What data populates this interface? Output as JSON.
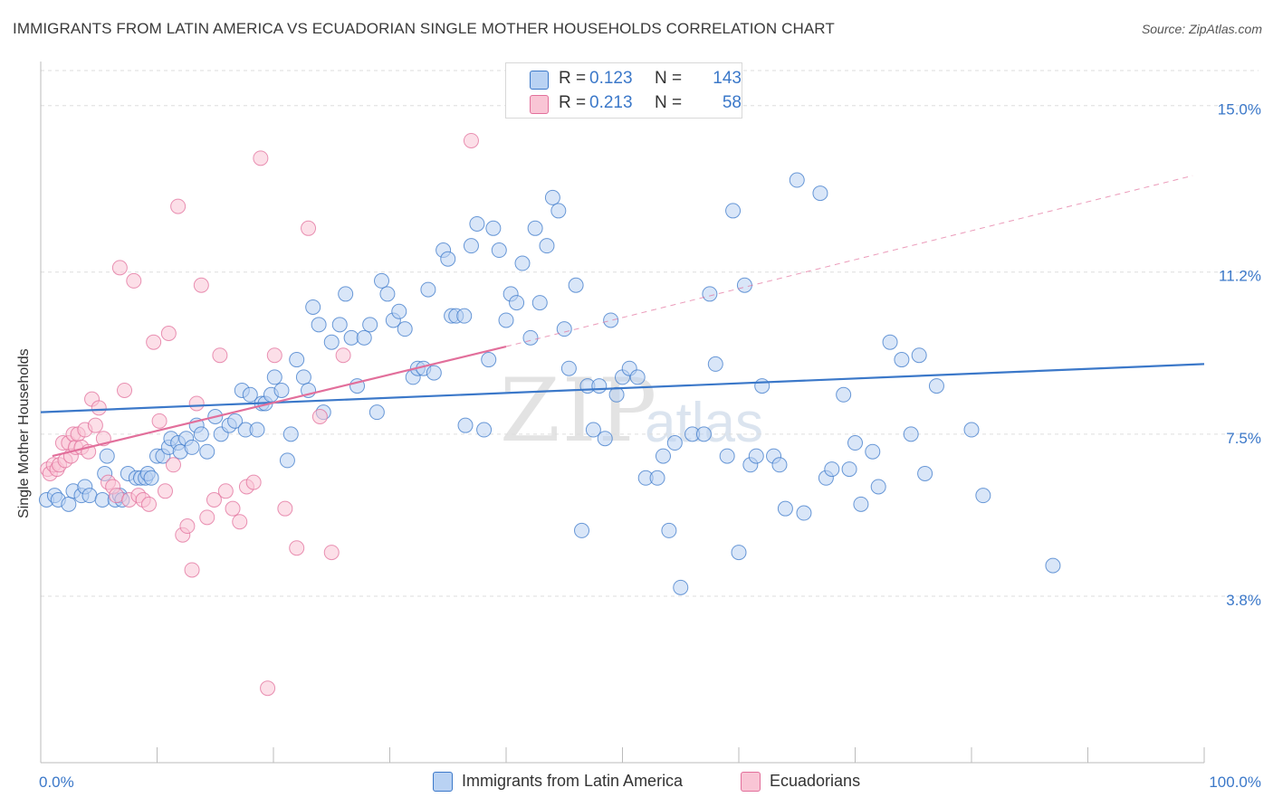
{
  "title": "IMMIGRANTS FROM LATIN AMERICA VS ECUADORIAN SINGLE MOTHER HOUSEHOLDS CORRELATION CHART",
  "source": "Source: ZipAtlas.com",
  "watermark": {
    "zip": "ZIP",
    "atlas": "atlas"
  },
  "colors": {
    "blue": "#3b78c9",
    "blue_fill": "#b9d2f3",
    "pink": "#e26f9b",
    "pink_fill": "#f9c5d5",
    "grid": "#dddddd"
  },
  "legend": {
    "rows": [
      {
        "r_label": "R =",
        "r_value": "0.123",
        "n_label": "N =",
        "n_value": "143"
      },
      {
        "r_label": "R =",
        "r_value": "0.213",
        "n_label": "N =",
        "n_value": "58"
      }
    ],
    "series_names": [
      "Immigrants from Latin America",
      "Ecuadorians"
    ]
  },
  "chart_data": {
    "type": "scatter",
    "title": "IMMIGRANTS FROM LATIN AMERICA VS ECUADORIAN SINGLE MOTHER HOUSEHOLDS CORRELATION CHART",
    "xlabel": "",
    "ylabel": "Single Mother Households",
    "xlim": [
      0,
      100
    ],
    "ylim": [
      0,
      15.8
    ],
    "x_tick_labels": [
      "0.0%",
      "100.0%"
    ],
    "y_ticks": [
      {
        "value": 3.8,
        "label": "3.8%"
      },
      {
        "value": 7.5,
        "label": "7.5%"
      },
      {
        "value": 11.2,
        "label": "11.2%"
      },
      {
        "value": 15.0,
        "label": "15.0%"
      }
    ],
    "series": [
      {
        "name": "Immigrants from Latin America",
        "color": "#3b78c9",
        "r": 0.123,
        "n": 143,
        "trend": {
          "x": [
            0,
            100
          ],
          "y": [
            8.0,
            9.1
          ],
          "style": "solid"
        },
        "points": [
          [
            0.5,
            6.0
          ],
          [
            1.2,
            6.1
          ],
          [
            1.5,
            6.0
          ],
          [
            2.4,
            5.9
          ],
          [
            2.8,
            6.2
          ],
          [
            3.5,
            6.1
          ],
          [
            3.8,
            6.3
          ],
          [
            4.2,
            6.1
          ],
          [
            5.3,
            6.0
          ],
          [
            5.7,
            7.0
          ],
          [
            5.5,
            6.6
          ],
          [
            6.4,
            6.0
          ],
          [
            6.8,
            6.1
          ],
          [
            7.0,
            6.0
          ],
          [
            7.5,
            6.6
          ],
          [
            8.2,
            6.5
          ],
          [
            8.6,
            6.5
          ],
          [
            9.0,
            6.5
          ],
          [
            9.2,
            6.6
          ],
          [
            9.5,
            6.5
          ],
          [
            10.0,
            7.0
          ],
          [
            10.5,
            7.0
          ],
          [
            11.0,
            7.2
          ],
          [
            11.2,
            7.4
          ],
          [
            11.8,
            7.3
          ],
          [
            12.0,
            7.1
          ],
          [
            12.5,
            7.4
          ],
          [
            13.0,
            7.2
          ],
          [
            13.4,
            7.7
          ],
          [
            13.8,
            7.5
          ],
          [
            14.3,
            7.1
          ],
          [
            15.0,
            7.9
          ],
          [
            15.5,
            7.5
          ],
          [
            16.2,
            7.7
          ],
          [
            16.7,
            7.8
          ],
          [
            17.3,
            8.5
          ],
          [
            17.6,
            7.6
          ],
          [
            18.0,
            8.4
          ],
          [
            18.6,
            7.6
          ],
          [
            19.0,
            8.2
          ],
          [
            19.3,
            8.2
          ],
          [
            19.8,
            8.4
          ],
          [
            20.1,
            8.8
          ],
          [
            20.7,
            8.5
          ],
          [
            21.2,
            6.9
          ],
          [
            21.5,
            7.5
          ],
          [
            22.0,
            9.2
          ],
          [
            22.6,
            8.8
          ],
          [
            23.0,
            8.5
          ],
          [
            23.4,
            10.4
          ],
          [
            23.9,
            10.0
          ],
          [
            24.3,
            8.0
          ],
          [
            25.0,
            9.6
          ],
          [
            25.7,
            10.0
          ],
          [
            26.2,
            10.7
          ],
          [
            26.7,
            9.7
          ],
          [
            27.2,
            8.6
          ],
          [
            27.8,
            9.7
          ],
          [
            28.3,
            10.0
          ],
          [
            28.9,
            8.0
          ],
          [
            29.3,
            11.0
          ],
          [
            29.8,
            10.7
          ],
          [
            30.3,
            10.1
          ],
          [
            30.8,
            10.3
          ],
          [
            31.3,
            9.9
          ],
          [
            32.0,
            8.8
          ],
          [
            32.4,
            9.0
          ],
          [
            32.9,
            9.0
          ],
          [
            33.3,
            10.8
          ],
          [
            33.8,
            8.9
          ],
          [
            34.6,
            11.7
          ],
          [
            35.0,
            11.5
          ],
          [
            35.3,
            10.2
          ],
          [
            35.7,
            10.2
          ],
          [
            36.4,
            10.2
          ],
          [
            36.5,
            7.7
          ],
          [
            37.0,
            11.8
          ],
          [
            37.5,
            12.3
          ],
          [
            38.1,
            7.6
          ],
          [
            38.5,
            9.2
          ],
          [
            38.9,
            12.2
          ],
          [
            39.4,
            11.7
          ],
          [
            40.0,
            10.1
          ],
          [
            40.4,
            10.7
          ],
          [
            40.9,
            10.5
          ],
          [
            41.4,
            11.4
          ],
          [
            42.1,
            9.7
          ],
          [
            42.5,
            12.2
          ],
          [
            42.9,
            10.5
          ],
          [
            43.5,
            11.8
          ],
          [
            44.0,
            12.9
          ],
          [
            44.5,
            12.6
          ],
          [
            45.0,
            9.9
          ],
          [
            45.4,
            9.0
          ],
          [
            46.0,
            10.9
          ],
          [
            46.5,
            5.3
          ],
          [
            47.0,
            8.6
          ],
          [
            47.5,
            7.6
          ],
          [
            48.0,
            8.6
          ],
          [
            48.5,
            7.4
          ],
          [
            49.0,
            10.1
          ],
          [
            49.5,
            8.4
          ],
          [
            50.0,
            8.8
          ],
          [
            50.6,
            9.0
          ],
          [
            51.3,
            8.8
          ],
          [
            52.0,
            6.5
          ],
          [
            53.0,
            6.5
          ],
          [
            53.5,
            7.0
          ],
          [
            54.0,
            5.3
          ],
          [
            54.5,
            7.3
          ],
          [
            55.0,
            4.0
          ],
          [
            56.0,
            7.5
          ],
          [
            57.0,
            7.5
          ],
          [
            57.5,
            10.7
          ],
          [
            58.0,
            9.1
          ],
          [
            59.0,
            7.0
          ],
          [
            59.5,
            12.6
          ],
          [
            60.0,
            4.8
          ],
          [
            60.5,
            10.9
          ],
          [
            61.0,
            6.8
          ],
          [
            61.5,
            7.0
          ],
          [
            62.0,
            8.6
          ],
          [
            63.0,
            7.0
          ],
          [
            63.5,
            6.8
          ],
          [
            64.0,
            5.8
          ],
          [
            65.0,
            13.3
          ],
          [
            65.6,
            5.7
          ],
          [
            67.0,
            13.0
          ],
          [
            67.5,
            6.5
          ],
          [
            68.0,
            6.7
          ],
          [
            69.0,
            8.4
          ],
          [
            69.5,
            6.7
          ],
          [
            70.0,
            7.3
          ],
          [
            70.5,
            5.9
          ],
          [
            71.5,
            7.1
          ],
          [
            72.0,
            6.3
          ],
          [
            73.0,
            9.6
          ],
          [
            74.0,
            9.2
          ],
          [
            74.8,
            7.5
          ],
          [
            75.5,
            9.3
          ],
          [
            76.0,
            6.6
          ],
          [
            77.0,
            8.6
          ],
          [
            80.0,
            7.6
          ],
          [
            81.0,
            6.1
          ],
          [
            87.0,
            4.5
          ]
        ]
      },
      {
        "name": "Ecuadorians",
        "color": "#e26f9b",
        "r": 0.213,
        "n": 58,
        "trend": {
          "x": [
            1,
            40
          ],
          "y": [
            7.0,
            9.5
          ],
          "style": "solid",
          "extended_x": [
            40,
            99
          ],
          "extended_y": [
            9.5,
            13.4
          ],
          "extended_style": "dashed"
        },
        "points": [
          [
            0.6,
            6.7
          ],
          [
            0.8,
            6.6
          ],
          [
            1.1,
            6.8
          ],
          [
            1.4,
            6.7
          ],
          [
            1.6,
            6.8
          ],
          [
            1.9,
            7.3
          ],
          [
            2.1,
            6.9
          ],
          [
            2.4,
            7.3
          ],
          [
            2.6,
            7.0
          ],
          [
            2.8,
            7.5
          ],
          [
            3.0,
            7.2
          ],
          [
            3.2,
            7.5
          ],
          [
            3.5,
            7.2
          ],
          [
            3.8,
            7.6
          ],
          [
            4.1,
            7.1
          ],
          [
            4.4,
            8.3
          ],
          [
            4.7,
            7.7
          ],
          [
            5.0,
            8.1
          ],
          [
            5.4,
            7.4
          ],
          [
            5.8,
            6.4
          ],
          [
            6.2,
            6.3
          ],
          [
            6.5,
            6.1
          ],
          [
            6.8,
            11.3
          ],
          [
            7.2,
            8.5
          ],
          [
            7.6,
            6.0
          ],
          [
            8.0,
            11.0
          ],
          [
            8.4,
            6.1
          ],
          [
            8.8,
            6.0
          ],
          [
            9.3,
            5.9
          ],
          [
            9.7,
            9.6
          ],
          [
            10.2,
            7.8
          ],
          [
            10.7,
            6.2
          ],
          [
            11.0,
            9.8
          ],
          [
            11.4,
            6.8
          ],
          [
            11.8,
            12.7
          ],
          [
            12.2,
            5.2
          ],
          [
            12.6,
            5.4
          ],
          [
            13.0,
            4.4
          ],
          [
            13.4,
            8.2
          ],
          [
            13.8,
            10.9
          ],
          [
            14.3,
            5.6
          ],
          [
            14.9,
            6.0
          ],
          [
            15.4,
            9.3
          ],
          [
            15.9,
            6.2
          ],
          [
            16.5,
            5.8
          ],
          [
            17.1,
            5.5
          ],
          [
            17.7,
            6.3
          ],
          [
            18.3,
            6.4
          ],
          [
            18.9,
            13.8
          ],
          [
            19.5,
            1.7
          ],
          [
            20.1,
            9.3
          ],
          [
            21.0,
            5.8
          ],
          [
            22.0,
            4.9
          ],
          [
            23.0,
            12.2
          ],
          [
            24.0,
            7.9
          ],
          [
            25.0,
            4.8
          ],
          [
            26.0,
            9.3
          ],
          [
            37.0,
            14.2
          ]
        ]
      }
    ],
    "legend_position": "top-center"
  }
}
